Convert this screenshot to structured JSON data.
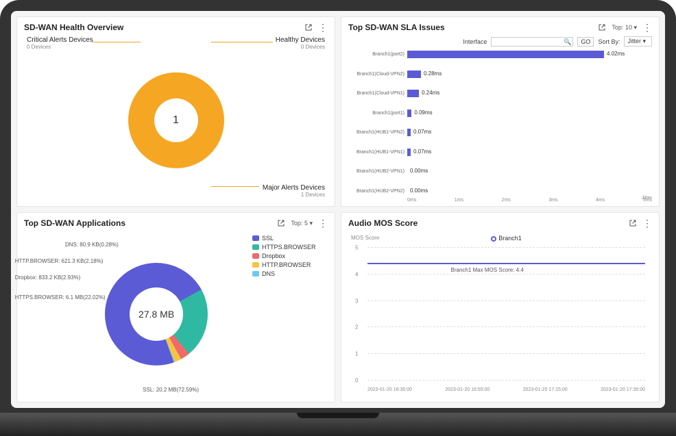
{
  "panels": {
    "health": {
      "title": "SD-WAN Health Overview",
      "center_value": "1",
      "donut_color": "#f5a623",
      "callouts": {
        "critical": {
          "title": "Critical Alerts Devices",
          "sub": "0 Devices"
        },
        "healthy": {
          "title": "Healthy Devices",
          "sub": "0 Devices"
        },
        "major": {
          "title": "Major Alerts Devices",
          "sub": "1 Devices"
        }
      }
    },
    "sla": {
      "title": "Top SD-WAN SLA Issues",
      "top_label": "Top:",
      "top_value": "10",
      "interface_label": "Interface",
      "search_placeholder": "",
      "go_label": "GO",
      "sort_label": "Sort By:",
      "sort_value": "Jitter",
      "axis_unit": "Jitter",
      "bar_color": "#5b5bd6",
      "x_max_ms": 5,
      "x_ticks": [
        "0ms",
        "1ms",
        "2ms",
        "3ms",
        "4ms",
        "5ms"
      ],
      "rows": [
        {
          "label": "Branch1(port2)",
          "value_ms": 4.02,
          "display": "4.02ms"
        },
        {
          "label": "Branch1(Cloud-VPN2)",
          "value_ms": 0.28,
          "display": "0.28ms"
        },
        {
          "label": "Branch1(Cloud-VPN1)",
          "value_ms": 0.24,
          "display": "0.24ms"
        },
        {
          "label": "Branch1(port1)",
          "value_ms": 0.09,
          "display": "0.09ms"
        },
        {
          "label": "Branch1(HUB1-VPN2)",
          "value_ms": 0.07,
          "display": "0.07ms"
        },
        {
          "label": "Branch1(HUB1-VPN1)",
          "value_ms": 0.07,
          "display": "0.07ms"
        },
        {
          "label": "Branch1(HUB2-VPN1)",
          "value_ms": 0.0,
          "display": "0.00ms"
        },
        {
          "label": "Branch1(HUB2-VPN2)",
          "value_ms": 0.0,
          "display": "0.00ms"
        }
      ]
    },
    "apps": {
      "title": "Top SD-WAN Applications",
      "top_label": "Top:",
      "top_value": "5",
      "total": "27.8 MB",
      "legend": [
        {
          "name": "SSL",
          "color": "#5b5bd6"
        },
        {
          "name": "HTTPS.BROWSER",
          "color": "#2fb9a3"
        },
        {
          "name": "Dropbox",
          "color": "#f06a6a"
        },
        {
          "name": "HTTP.BROWSER",
          "color": "#f5c542"
        },
        {
          "name": "DNS",
          "color": "#6ec8f0"
        }
      ],
      "slices": [
        {
          "name": "SSL",
          "pct": 72.59,
          "label": "SSL: 20.2 MB(72.59%)"
        },
        {
          "name": "HTTPS.BROWSER",
          "pct": 22.02,
          "label": "HTTPS.BROWSER: 6.1 MB(22.02%)"
        },
        {
          "name": "Dropbox",
          "pct": 2.93,
          "label": "Dropbox: 833.2 KB(2.93%)"
        },
        {
          "name": "HTTP.BROWSER",
          "pct": 2.18,
          "label": "HTTP.BROWSER: 621.3 KB(2.18%)"
        },
        {
          "name": "DNS",
          "pct": 0.28,
          "label": "DNS: 80.9 KB(0.28%)"
        }
      ]
    },
    "mos": {
      "title": "Audio MOS Score",
      "y_title": "MOS Score",
      "legend_series": "Branch1",
      "note": "Branch1 Max MOS Score: 4.4",
      "line_color": "#5b5bd6",
      "grid_color": "#dddddd",
      "y_min": 0,
      "y_max": 5,
      "y_step": 1,
      "series_value": 4.4,
      "x_ticks": [
        "2023-01-20 16:35:00",
        "2023-01-20 16:55:00",
        "2023-01-20 17:15:00",
        "2023-01-20 17:35:00"
      ]
    }
  }
}
